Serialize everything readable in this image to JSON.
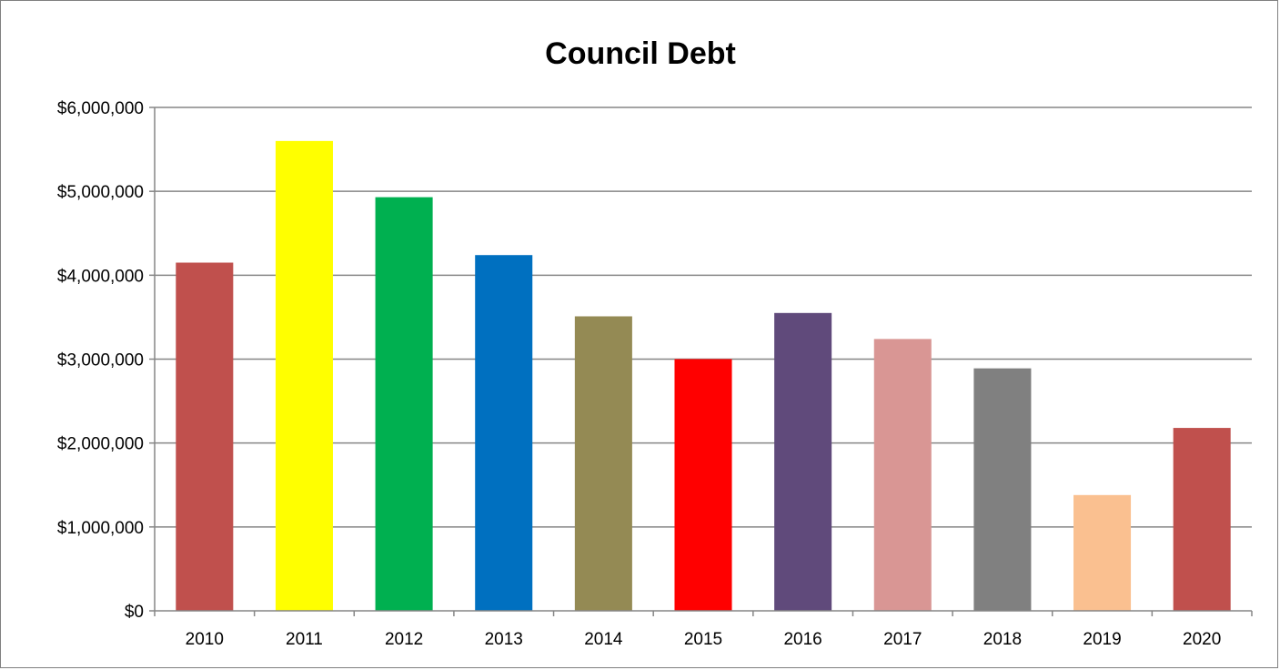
{
  "chart_data": {
    "type": "bar",
    "title": "Council Debt",
    "xlabel": "",
    "ylabel": "",
    "categories": [
      "2010",
      "2011",
      "2012",
      "2013",
      "2014",
      "2015",
      "2016",
      "2017",
      "2018",
      "2019",
      "2020"
    ],
    "values": [
      4150000,
      5600000,
      4930000,
      4240000,
      3510000,
      3000000,
      3550000,
      3240000,
      2890000,
      1380000,
      2180000
    ],
    "bar_colors": [
      "#c0504d",
      "#ffff00",
      "#00b050",
      "#0070c0",
      "#948a54",
      "#ff0000",
      "#604a7b",
      "#d99694",
      "#808080",
      "#fac090",
      "#c0504d"
    ],
    "ylim": [
      0,
      6000000
    ],
    "y_ticks": [
      0,
      1000000,
      2000000,
      3000000,
      4000000,
      5000000,
      6000000
    ],
    "y_tick_labels": [
      "$0",
      "$1,000,000",
      "$2,000,000",
      "$3,000,000",
      "$4,000,000",
      "$5,000,000",
      "$6,000,000"
    ],
    "grid": true,
    "legend": "none"
  }
}
